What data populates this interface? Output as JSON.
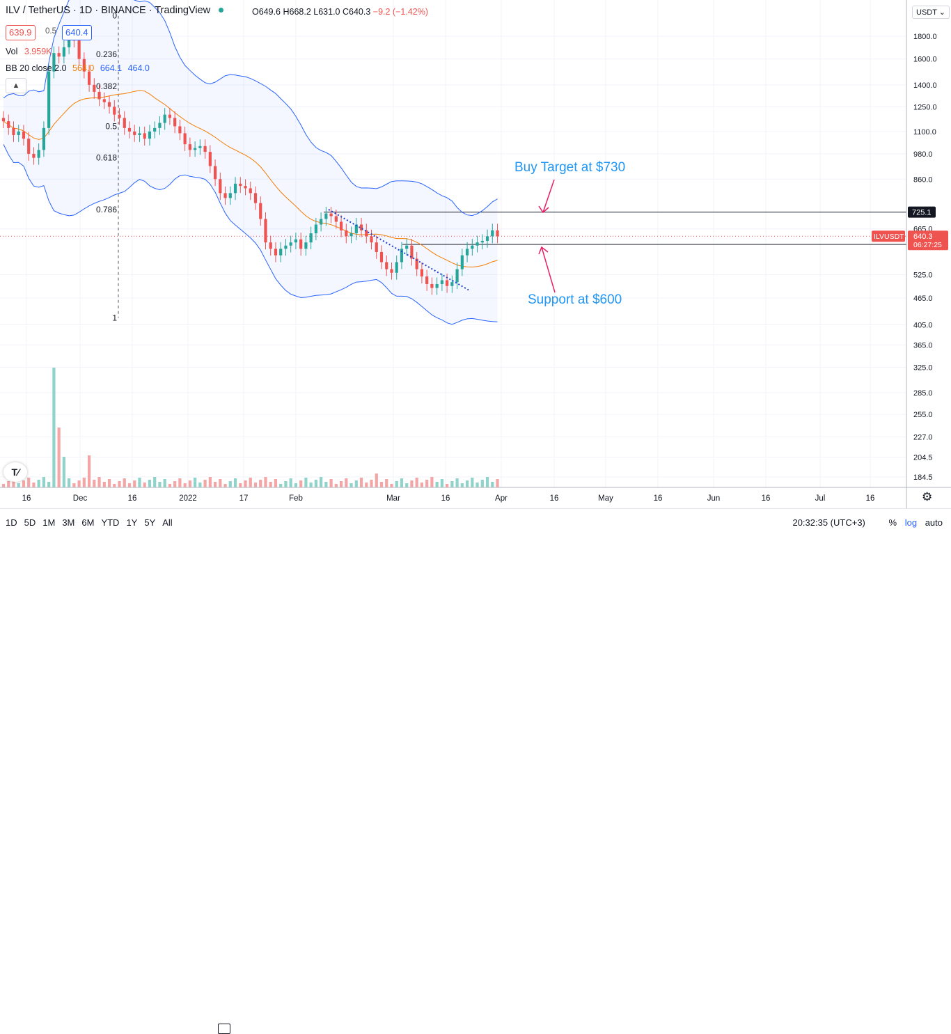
{
  "header": {
    "title": "ILV / TetherUS · 1D · BINANCE · TradingView",
    "ohlc": "O649.6 H668.2 L631.0 C640.3",
    "change": "−9.2 (−1.42%)",
    "bid": "639.9",
    "spread": "0.5",
    "ask": "640.4",
    "vol_label": "Vol",
    "vol_value": "3.959K",
    "bb_label": "BB 20 close 2.0",
    "bb_basis": "564.0",
    "bb_upper": "664.1",
    "bb_lower": "464.0",
    "collapse_icon": "chevron-up-icon"
  },
  "currency_button": "USDT",
  "annotations": {
    "buy_target": "Buy Target at $730",
    "support": "Support at $600"
  },
  "price_labels": {
    "level_top": "725.1",
    "symbol": "ILVUSDT",
    "last": "640.3",
    "countdown": "06:27:25",
    "level_bottom": "613.8"
  },
  "bottom_bar": {
    "ranges": [
      "1D",
      "5D",
      "1M",
      "3M",
      "6M",
      "YTD",
      "1Y",
      "5Y",
      "All"
    ],
    "time": "20:32:35 (UTC+3)",
    "percent": "%",
    "log": "log",
    "auto": "auto"
  },
  "colors": {
    "up": "#26a69a",
    "down": "#ef5350",
    "bb_band": "#2962ff",
    "bb_basis": "#f57c00",
    "annotation_blue": "#2196f3",
    "annotation_arrow": "#e91e63"
  },
  "chart_data": {
    "type": "candlestick",
    "scale": "log",
    "y_ticks": [
      "1800.0",
      "1600.0",
      "1400.0",
      "1250.0",
      "1100.0",
      "980.0",
      "860.0",
      "665.0",
      "525.0",
      "465.0",
      "405.0",
      "365.0",
      "325.0",
      "285.0",
      "255.0",
      "227.0",
      "204.5",
      "184.5"
    ],
    "x_ticks": [
      "16",
      "Dec",
      "16",
      "2022",
      "17",
      "Feb",
      "Mar",
      "16",
      "Apr",
      "16",
      "May",
      "16",
      "Jun",
      "16",
      "Jul",
      "16"
    ],
    "fib_levels": [
      {
        "label": "0",
        "value": 2000
      },
      {
        "label": "0.236",
        "value": 1640
      },
      {
        "label": "0.382",
        "value": 1390
      },
      {
        "label": "0.5",
        "value": 1130
      },
      {
        "label": "0.618",
        "value": 960
      },
      {
        "label": "0.786",
        "value": 735
      },
      {
        "label": "1",
        "value": 420
      }
    ],
    "horizontal_lines": [
      725.1,
      613.8
    ],
    "closes_approx": [
      1160,
      1120,
      1080,
      1100,
      1060,
      980,
      960,
      1000,
      1120,
      1500,
      1650,
      1620,
      1700,
      1780,
      1760,
      1600,
      1500,
      1400,
      1350,
      1300,
      1280,
      1250,
      1200,
      1180,
      1120,
      1100,
      1080,
      1090,
      1060,
      1100,
      1120,
      1150,
      1200,
      1180,
      1130,
      1090,
      1030,
      1000,
      1010,
      1020,
      990,
      920,
      860,
      800,
      780,
      800,
      840,
      830,
      820,
      800,
      760,
      700,
      620,
      600,
      580,
      600,
      610,
      620,
      630,
      600,
      620,
      650,
      680,
      700,
      720,
      710,
      690,
      660,
      640,
      650,
      680,
      660,
      640,
      620,
      590,
      560,
      540,
      530,
      560,
      600,
      610,
      570,
      540,
      520,
      500,
      490,
      500,
      510,
      495,
      505,
      540,
      580,
      600,
      610,
      620,
      625,
      640,
      660,
      640
    ]
  }
}
